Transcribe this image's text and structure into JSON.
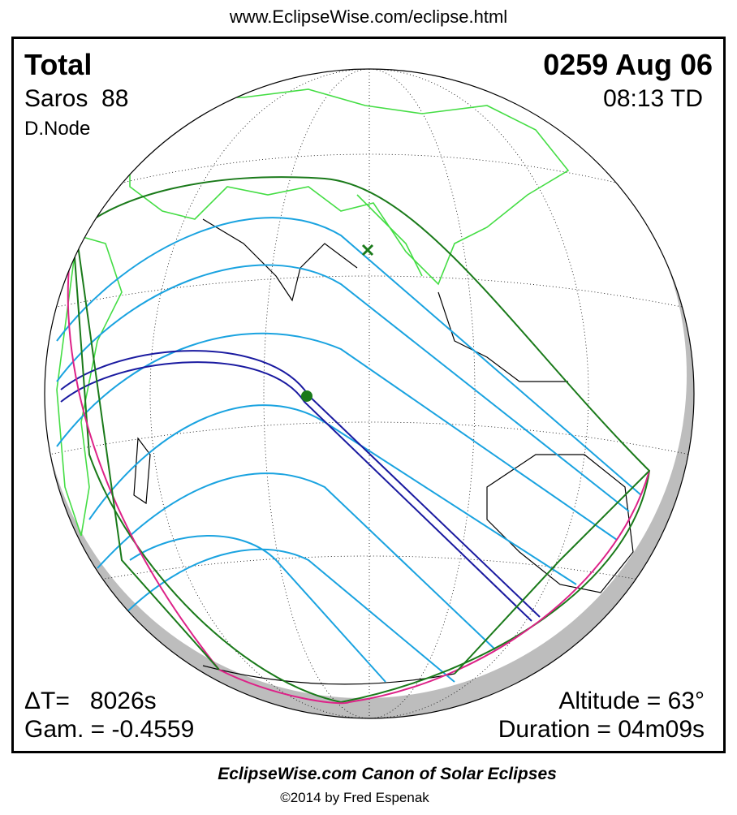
{
  "header": {
    "url": "www.EclipseWise.com/eclipse.html"
  },
  "panel": {
    "eclipse_type": "Total",
    "saros": "Saros  88",
    "node": "D.Node",
    "date": "0259 Aug 06",
    "time": "08:13 TD",
    "delta_t": "ΔT=   8026s",
    "gamma": "Gam. = -0.4559",
    "altitude": "Altitude = 63°",
    "duration": "Duration = 04m09s"
  },
  "footer": {
    "title": "EclipseWise.com Canon of Solar Eclipses",
    "copyright": "©2014 by Fred Espenak"
  }
}
